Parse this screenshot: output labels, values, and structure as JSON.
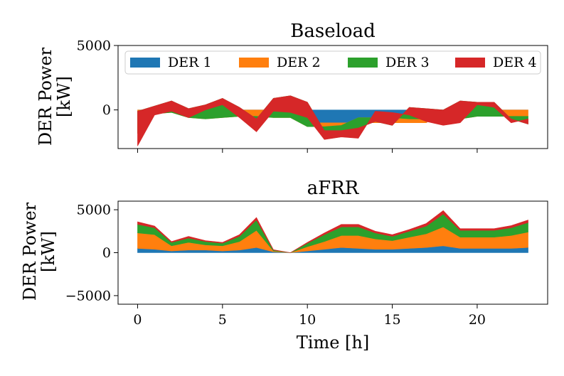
{
  "chart_data": [
    {
      "type": "area",
      "title": "Baseload",
      "ylabel": "DER Power\n[kW]",
      "xlabel": "",
      "xlim": [
        -1.15,
        24.15
      ],
      "ylim": [
        -3000,
        5000
      ],
      "yticks": [
        0,
        5000
      ],
      "ytick_labels": [
        "0",
        "5000"
      ],
      "xticks": [
        0,
        5,
        10,
        15,
        20
      ],
      "show_xtick_labels": false,
      "legend": {
        "placement": "top",
        "ncol": 4
      },
      "x": [
        0,
        1,
        2,
        3,
        4,
        5,
        6,
        7,
        8,
        9,
        10,
        11,
        12,
        13,
        14,
        15,
        16,
        17,
        18,
        19,
        20,
        21,
        22,
        23
      ],
      "series": [
        {
          "name": "DER 1",
          "color": "#1f77b4",
          "values": [
            0,
            0,
            0,
            0,
            0,
            0,
            0,
            0,
            0,
            0,
            -1000,
            -1000,
            -1000,
            -1000,
            -1000,
            -1000,
            -1000,
            -1000,
            0,
            0,
            0,
            0,
            0,
            0
          ]
        },
        {
          "name": "DER 2",
          "color": "#ff7f0e",
          "values": [
            -1800,
            -300,
            -200,
            -600,
            -700,
            -600,
            -500,
            -500,
            -600,
            -600,
            -300,
            -300,
            -200,
            400,
            400,
            400,
            300,
            300,
            -700,
            -700,
            -500,
            -500,
            -500,
            -500
          ]
        },
        {
          "name": "DER 3",
          "color": "#2ca02c",
          "values": [
            1700,
            600,
            900,
            700,
            1100,
            1500,
            700,
            -200,
            1500,
            1700,
            1900,
            -300,
            -400,
            -800,
            -300,
            -600,
            900,
            800,
            700,
            1400,
            1100,
            1100,
            -200,
            -600
          ]
        },
        {
          "name": "DER 4",
          "color": "#d62728",
          "values": [
            -2700,
            -700,
            -800,
            -700,
            -400,
            -500,
            -800,
            -1000,
            -1000,
            -1300,
            -1200,
            -700,
            -500,
            -800,
            800,
            1000,
            -600,
            -1000,
            -1200,
            -1700,
            -200,
            -400,
            -300,
            400
          ]
        }
      ]
    },
    {
      "type": "area",
      "title": "aFRR",
      "ylabel": "DER Power\n[kW]",
      "xlabel": "Time [h]",
      "xlim": [
        -1.15,
        24.15
      ],
      "ylim": [
        -6000,
        6000
      ],
      "yticks": [
        -5000,
        0,
        5000
      ],
      "ytick_labels": [
        "−5000",
        "0",
        "5000"
      ],
      "xticks": [
        0,
        5,
        10,
        15,
        20
      ],
      "xtick_labels": [
        "0",
        "5",
        "10",
        "15",
        "20"
      ],
      "show_xtick_labels": true,
      "x": [
        0,
        1,
        2,
        3,
        4,
        5,
        6,
        7,
        8,
        9,
        10,
        11,
        12,
        13,
        14,
        15,
        16,
        17,
        18,
        19,
        20,
        21,
        22,
        23
      ],
      "series": [
        {
          "name": "DER 1",
          "color": "#1f77b4",
          "values": [
            500,
            400,
            200,
            300,
            300,
            200,
            300,
            600,
            100,
            0,
            200,
            400,
            600,
            500,
            400,
            400,
            500,
            600,
            800,
            500,
            500,
            500,
            500,
            600
          ]
        },
        {
          "name": "DER 2",
          "color": "#ff7f0e",
          "values": [
            1800,
            1700,
            600,
            900,
            600,
            600,
            1000,
            2000,
            100,
            0,
            500,
            900,
            1400,
            1500,
            1200,
            1000,
            1300,
            1600,
            2200,
            1300,
            1300,
            1300,
            1500,
            1800
          ]
        },
        {
          "name": "DER 3",
          "color": "#2ca02c",
          "values": [
            1000,
            800,
            400,
            500,
            400,
            300,
            600,
            1200,
            100,
            0,
            400,
            800,
            1000,
            1000,
            700,
            500,
            700,
            900,
            1500,
            800,
            800,
            800,
            900,
            1100
          ]
        },
        {
          "name": "DER 4",
          "color": "#d62728",
          "values": [
            300,
            200,
            100,
            200,
            100,
            100,
            200,
            300,
            50,
            0,
            100,
            200,
            300,
            300,
            200,
            200,
            200,
            300,
            400,
            200,
            200,
            200,
            250,
            300
          ]
        }
      ]
    }
  ]
}
